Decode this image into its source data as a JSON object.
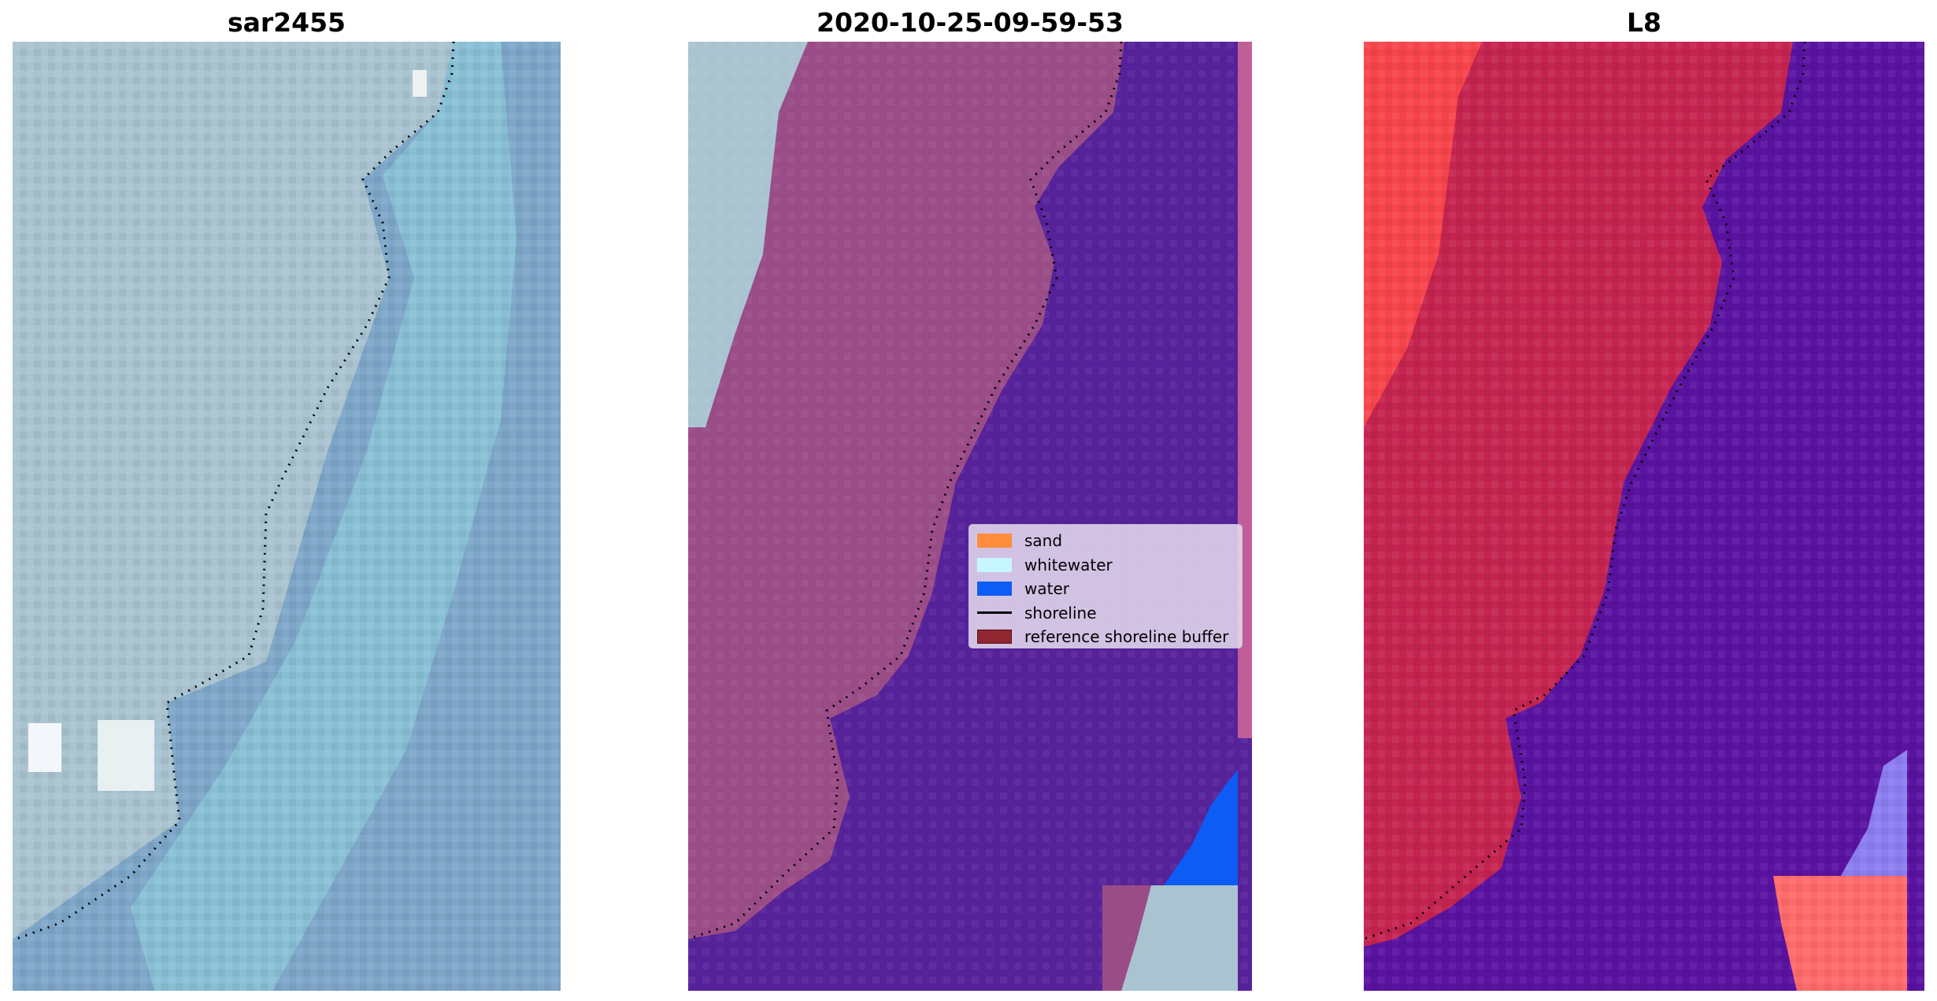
{
  "panels": [
    {
      "title": "sar2455"
    },
    {
      "title": "2020-10-25-09-59-53"
    },
    {
      "title": "L8"
    }
  ],
  "legend": {
    "items": [
      {
        "label": "sand",
        "color": "#ff8c3b",
        "kind": "patch"
      },
      {
        "label": "whitewater",
        "color": "#c6f7ff",
        "kind": "patch"
      },
      {
        "label": "water",
        "color": "#0c5cf5",
        "kind": "patch"
      },
      {
        "label": "shoreline",
        "color": "#000000",
        "kind": "line"
      },
      {
        "label": "reference shoreline buffer",
        "color": "#8f2630",
        "kind": "patch"
      }
    ]
  },
  "colors": {
    "land_rgb": "#a9c3d0",
    "sea_rgb": "#7ea6c8",
    "surf_rgb": "#8fd3e0",
    "land_overlay": "#9a4c86",
    "water_overlay": "#56229a",
    "land_l8": "#c52450",
    "land_l8_bright": "#ff4a4a",
    "water_l8": "#5a12a0",
    "shoreline": "#000000"
  }
}
